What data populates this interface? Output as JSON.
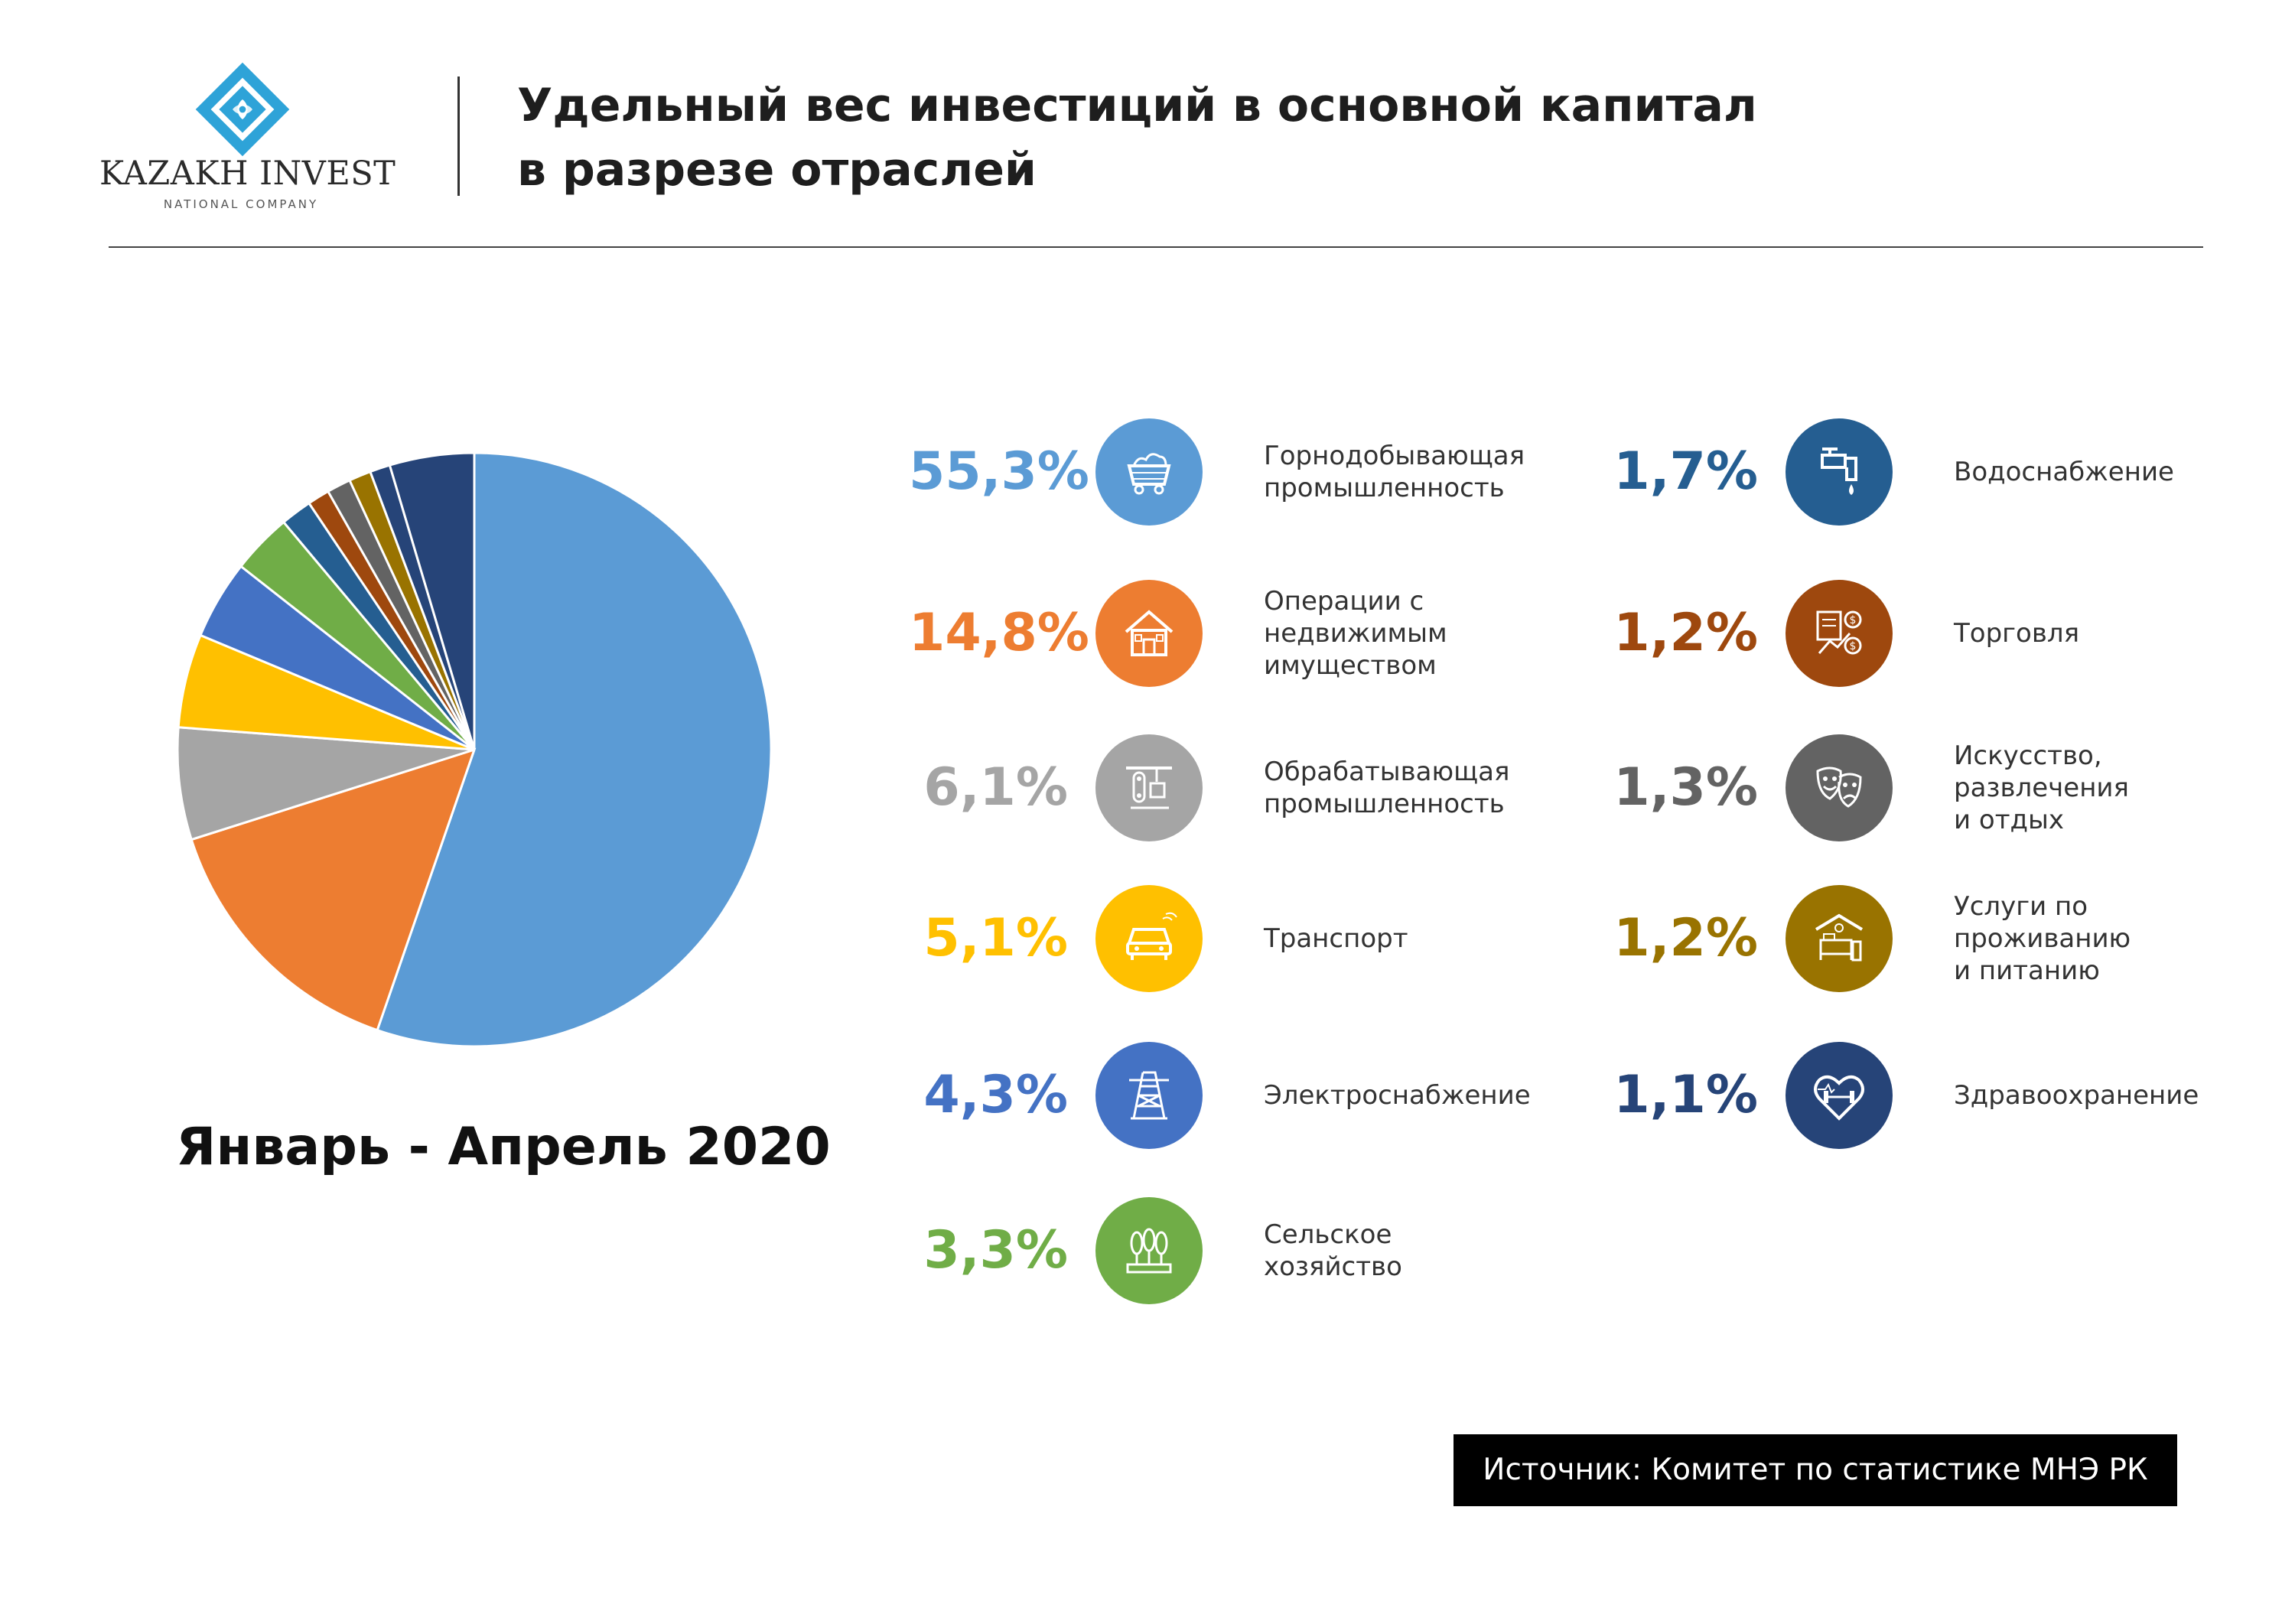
{
  "logo": {
    "name": "KAZAKH INVEST",
    "subtitle": "NATIONAL COMPANY"
  },
  "title": {
    "line1": "Удельный вес инвестиций в основной капитал",
    "line2": "в разрезе отраслей"
  },
  "period": "Январь - Апрель 2020",
  "source": "Источник: Комитет по статистике МНЭ РК",
  "colors": {
    "mining": "#5b9bd5",
    "real_estate": "#ed7d31",
    "manufacturing": "#a5a5a5",
    "transport": "#ffc000",
    "electricity": "#4472c4",
    "agriculture": "#70ad47",
    "water": "#255e91",
    "trade": "#9e480e",
    "arts": "#636363",
    "hospitality": "#997300",
    "health": "#264478"
  },
  "legend": [
    {
      "value": "55,3%",
      "lines": [
        "Горнодобывающая",
        "промышленность"
      ],
      "color": "#5b9bd5",
      "icon": "mine-cart-icon"
    },
    {
      "value": "14,8%",
      "lines": [
        "Операции с",
        "недвижимым",
        "имуществом"
      ],
      "color": "#ed7d31",
      "icon": "house-icon"
    },
    {
      "value": "6,1%",
      "lines": [
        "Обрабатывающая",
        "промышленность"
      ],
      "color": "#a5a5a5",
      "icon": "conveyor-icon"
    },
    {
      "value": "5,1%",
      "lines": [
        "Транспорт"
      ],
      "color": "#ffc000",
      "icon": "car-icon"
    },
    {
      "value": "4,3%",
      "lines": [
        "Электроснабжение"
      ],
      "color": "#4472c4",
      "icon": "power-tower-icon"
    },
    {
      "value": "3,3%",
      "lines": [
        "Сельское",
        "хозяйство"
      ],
      "color": "#70ad47",
      "icon": "plants-icon"
    },
    {
      "value": "1,7%",
      "lines": [
        "Водоснабжение"
      ],
      "color": "#255e91",
      "icon": "faucet-icon"
    },
    {
      "value": "1,2%",
      "lines": [
        "Торговля"
      ],
      "color": "#9e480e",
      "icon": "trade-icon"
    },
    {
      "value": "1,3%",
      "lines": [
        "Искусство,",
        "развлечения",
        "и отдых"
      ],
      "color": "#636363",
      "icon": "theater-masks-icon"
    },
    {
      "value": "1,2%",
      "lines": [
        "Услуги по",
        "проживанию",
        "и питанию"
      ],
      "color": "#997300",
      "icon": "hotel-bed-icon"
    },
    {
      "value": "1,1%",
      "lines": [
        "Здравоохранение"
      ],
      "color": "#264478",
      "icon": "heart-dumbbell-icon"
    }
  ],
  "chart_data": {
    "type": "pie",
    "title": "",
    "categories": [
      "Горнодобывающая промышленность",
      "Операции с недвижимым имуществом",
      "Обрабатывающая промышленность",
      "Транспорт",
      "Электроснабжение",
      "Сельское хозяйство",
      "Водоснабжение",
      "Торговля",
      "Искусство, развлечения и отдых",
      "Услуги по проживанию и питанию",
      "Здравоохранение",
      ""
    ],
    "values": [
      55.3,
      14.8,
      6.1,
      5.1,
      4.3,
      3.3,
      1.7,
      1.2,
      1.3,
      1.2,
      1.1,
      4.6
    ],
    "colors": [
      "#5b9bd5",
      "#ed7d31",
      "#a5a5a5",
      "#ffc000",
      "#4472c4",
      "#70ad47",
      "#255e91",
      "#9e480e",
      "#636363",
      "#997300",
      "#264478",
      "#264478"
    ],
    "legend_position": "right",
    "start_angle": "12 o'clock, clockwise"
  }
}
